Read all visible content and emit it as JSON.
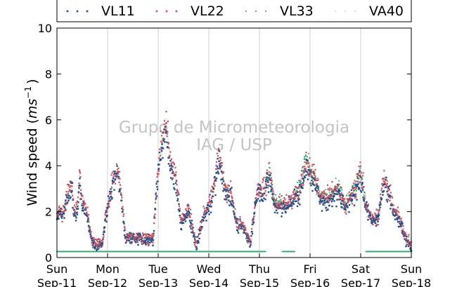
{
  "chart_data": {
    "type": "scatter",
    "ylabel_main": "Wind speed (",
    "ylabel_unit": "ms",
    "ylabel_exp": "−1",
    "ylabel_close": ")",
    "ylim": [
      0,
      10
    ],
    "yticks": [
      "0",
      "2",
      "4",
      "6",
      "8",
      "10"
    ],
    "xlim_days": [
      0,
      7
    ],
    "x_ticks": [
      {
        "day": "Sun",
        "date": "Sep-11"
      },
      {
        "day": "Mon",
        "date": "Sep-12"
      },
      {
        "day": "Tue",
        "date": "Sep-13"
      },
      {
        "day": "Wed",
        "date": "Sep-14"
      },
      {
        "day": "Thu",
        "date": "Sep-15"
      },
      {
        "day": "Fri",
        "date": "Sep-16"
      },
      {
        "day": "Sat",
        "date": "Sep-17"
      },
      {
        "day": "Sun",
        "date": "Sep-18"
      }
    ],
    "grid": "vertical",
    "legend_position": "top",
    "watermark_line1": "Grupo de Micrometeorologia",
    "watermark_line2": "IAG / USP",
    "series": [
      {
        "name": "VL11",
        "color": "#1f4e8c",
        "style": "dots"
      },
      {
        "name": "VL22",
        "color": "#c8545e",
        "style": "dots"
      },
      {
        "name": "VL33",
        "color": "#3aaa72",
        "style": "small-dots"
      },
      {
        "name": "VA40",
        "color": "#e0a080",
        "style": "tiny-dots"
      }
    ],
    "profile": [
      [
        0.0,
        1.9
      ],
      [
        0.15,
        2.0
      ],
      [
        0.22,
        3.0
      ],
      [
        0.3,
        3.1
      ],
      [
        0.33,
        2.1
      ],
      [
        0.4,
        2.0
      ],
      [
        0.45,
        3.5
      ],
      [
        0.5,
        2.4
      ],
      [
        0.58,
        2.0
      ],
      [
        0.65,
        1.2
      ],
      [
        0.7,
        0.6
      ],
      [
        0.9,
        0.6
      ],
      [
        0.97,
        1.9
      ],
      [
        1.1,
        3.3
      ],
      [
        1.2,
        3.8
      ],
      [
        1.28,
        2.5
      ],
      [
        1.35,
        0.9
      ],
      [
        1.9,
        0.8
      ],
      [
        2.0,
        4.0
      ],
      [
        2.15,
        5.8
      ],
      [
        2.25,
        4.0
      ],
      [
        2.35,
        3.5
      ],
      [
        2.45,
        1.5
      ],
      [
        2.6,
        2.1
      ],
      [
        2.75,
        0.5
      ],
      [
        2.9,
        1.8
      ],
      [
        3.05,
        2.5
      ],
      [
        3.2,
        4.4
      ],
      [
        3.32,
        3.0
      ],
      [
        3.45,
        2.6
      ],
      [
        3.55,
        1.5
      ],
      [
        3.68,
        1.4
      ],
      [
        3.82,
        0.6
      ],
      [
        3.95,
        2.9
      ],
      [
        4.1,
        2.9
      ],
      [
        4.2,
        3.7
      ],
      [
        4.3,
        2.3
      ],
      [
        4.5,
        2.3
      ],
      [
        4.65,
        2.5
      ],
      [
        4.8,
        3.0
      ],
      [
        4.92,
        4.1
      ],
      [
        5.0,
        3.7
      ],
      [
        5.1,
        3.4
      ],
      [
        5.2,
        2.5
      ],
      [
        5.4,
        2.6
      ],
      [
        5.55,
        3.0
      ],
      [
        5.7,
        2.2
      ],
      [
        5.9,
        3.0
      ],
      [
        6.0,
        3.6
      ],
      [
        6.1,
        2.3
      ],
      [
        6.2,
        1.7
      ],
      [
        6.35,
        1.8
      ],
      [
        6.45,
        3.3
      ],
      [
        6.55,
        3.0
      ],
      [
        6.65,
        2.0
      ],
      [
        6.75,
        1.8
      ],
      [
        6.9,
        0.8
      ],
      [
        7.0,
        0.5
      ]
    ],
    "vl33_flat_value": 0.26,
    "vl33_flat_ranges": [
      [
        0.0,
        4.12
      ],
      [
        4.45,
        4.7
      ],
      [
        6.1,
        7.0
      ]
    ],
    "vl33_live_ranges": [
      [
        4.12,
        4.45
      ],
      [
        4.7,
        6.1
      ]
    ]
  }
}
